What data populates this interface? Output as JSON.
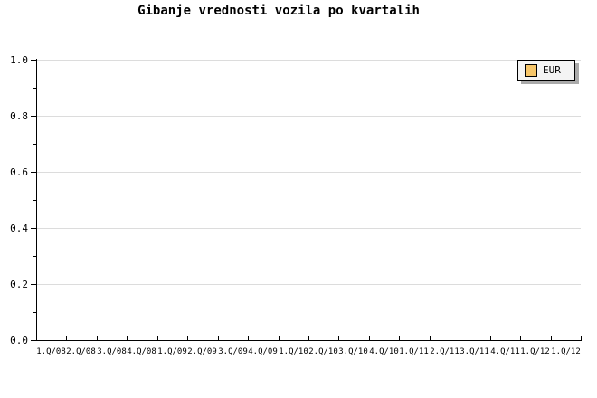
{
  "title": "Gibanje vrednosti vozila po kvartalih",
  "legend": {
    "label": "EUR",
    "swatch_color": "#F6C66A",
    "background": "#F4F4F4",
    "shadow_color": "#AAAAAA",
    "position": "top-right"
  },
  "colors": {
    "background": "#FFFFFF",
    "axis": "#000000",
    "grid": "#DCDCDC",
    "text": "#000000"
  },
  "chart_data": {
    "type": "bar",
    "title": "Gibanje vrednosti vozila po kvartalih",
    "categories": [
      "1.Q/08",
      "2.Q/08",
      "3.Q/08",
      "4.Q/08",
      "1.Q/09",
      "2.Q/09",
      "3.Q/09",
      "4.Q/09",
      "1.Q/10",
      "2.Q/10",
      "3.Q/10",
      "4.Q/10",
      "1.Q/11",
      "2.Q/11",
      "3.Q/11",
      "4.Q/11",
      "1.Q/12",
      "1.Q/12"
    ],
    "series": [
      {
        "name": "EUR",
        "color": "#F6C66A",
        "values": []
      }
    ],
    "plot_empty": true,
    "xlabel": "",
    "ylabel": "",
    "ylim": [
      0.0,
      1.0
    ],
    "y_tick_labels": [
      "0.0",
      "0.2",
      "0.4",
      "0.6",
      "0.8",
      "1.0"
    ],
    "y_major_tick_step": 0.2,
    "y_minor_tick_step": 0.1,
    "grid": "horizontal-only",
    "legend_position": "top-right"
  }
}
